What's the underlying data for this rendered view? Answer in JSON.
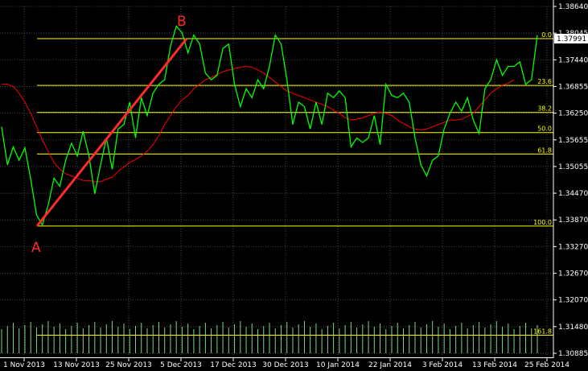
{
  "chart_data": {
    "type": "line",
    "title": "",
    "xlabel": "",
    "ylabel": "",
    "ylim": [
      1.30885,
      1.3864
    ],
    "grid": true,
    "y_ticks": [
      "1.38640",
      "1.38045",
      "1.37440",
      "1.36855",
      "1.36250",
      "1.35655",
      "1.35055",
      "1.34470",
      "1.33870",
      "1.33270",
      "1.32670",
      "1.32070",
      "1.31480",
      "1.30885"
    ],
    "x_ticks": [
      "1 Nov 2013",
      "13 Nov 2013",
      "25 Nov 2013",
      "5 Dec 2013",
      "17 Dec 2013",
      "30 Dec 2013",
      "10 Jan 2014",
      "22 Jan 2014",
      "3 Feb 2014",
      "13 Feb 2014",
      "25 Feb 2014"
    ],
    "current_price": "1.37991",
    "price_series": [
      1.3595,
      1.351,
      1.355,
      1.352,
      1.3548,
      1.3478,
      1.3398,
      1.3375,
      1.342,
      1.348,
      1.3462,
      1.352,
      1.3558,
      1.353,
      1.3585,
      1.353,
      1.3445,
      1.351,
      1.357,
      1.35,
      1.359,
      1.36,
      1.365,
      1.357,
      1.366,
      1.362,
      1.367,
      1.369,
      1.37,
      1.3775,
      1.382,
      1.3805,
      1.376,
      1.38,
      1.378,
      1.3715,
      1.37,
      1.371,
      1.377,
      1.378,
      1.369,
      1.364,
      1.368,
      1.366,
      1.37,
      1.368,
      1.373,
      1.38,
      1.378,
      1.37,
      1.36,
      1.365,
      1.364,
      1.359,
      1.365,
      1.36,
      1.367,
      1.366,
      1.3675,
      1.366,
      1.355,
      1.357,
      1.356,
      1.357,
      1.362,
      1.3555,
      1.369,
      1.3665,
      1.366,
      1.367,
      1.365,
      1.357,
      1.351,
      1.3485,
      1.352,
      1.353,
      1.359,
      1.3625,
      1.365,
      1.363,
      1.366,
      1.361,
      1.358,
      1.368,
      1.37,
      1.3745,
      1.371,
      1.373,
      1.373,
      1.374,
      1.369,
      1.37,
      1.38
    ],
    "ma_series": [
      1.369,
      1.369,
      1.3685,
      1.367,
      1.365,
      1.3625,
      1.3595,
      1.3565,
      1.354,
      1.3515,
      1.35,
      1.349,
      1.3485,
      1.348,
      1.3475,
      1.3475,
      1.3472,
      1.3472,
      1.3478,
      1.3482,
      1.3495,
      1.3505,
      1.3515,
      1.3522,
      1.353,
      1.354,
      1.3555,
      1.3575,
      1.36,
      1.362,
      1.364,
      1.3655,
      1.3665,
      1.368,
      1.369,
      1.37,
      1.3705,
      1.3712,
      1.3718,
      1.3722,
      1.3725,
      1.3728,
      1.373,
      1.3728,
      1.3722,
      1.3715,
      1.3705,
      1.3695,
      1.3685,
      1.3675,
      1.367,
      1.3665,
      1.366,
      1.3655,
      1.365,
      1.3645,
      1.364,
      1.3632,
      1.3625,
      1.3615,
      1.361,
      1.3612,
      1.3615,
      1.362,
      1.3625,
      1.3628,
      1.3625,
      1.362,
      1.361,
      1.3602,
      1.3595,
      1.359,
      1.3588,
      1.359,
      1.3595,
      1.36,
      1.3605,
      1.361,
      1.361,
      1.3612,
      1.3618,
      1.3625,
      1.364,
      1.3655,
      1.367,
      1.368,
      1.3688,
      1.3692,
      1.37
    ],
    "fib_levels": [
      {
        "label": "0.0",
        "value": 1.3792
      },
      {
        "label": "23.6",
        "value": 1.36875
      },
      {
        "label": "38.2",
        "value": 1.3627
      },
      {
        "label": "50.0",
        "value": 1.3582
      },
      {
        "label": "61.8",
        "value": 1.3534
      },
      {
        "label": "100.0",
        "value": 1.3373
      },
      {
        "label": "161.8",
        "value": 1.3129
      }
    ],
    "trend_line": {
      "start_label": "A",
      "end_label": "B",
      "start_value": 1.3373,
      "end_value": 1.3792
    },
    "colors": {
      "price": "#00ff00",
      "ma": "#ff0000",
      "fib": "#ffff00",
      "trend": "#ff2b2b",
      "grid": "#4a4a4a",
      "volume": "#7fd87f"
    }
  }
}
